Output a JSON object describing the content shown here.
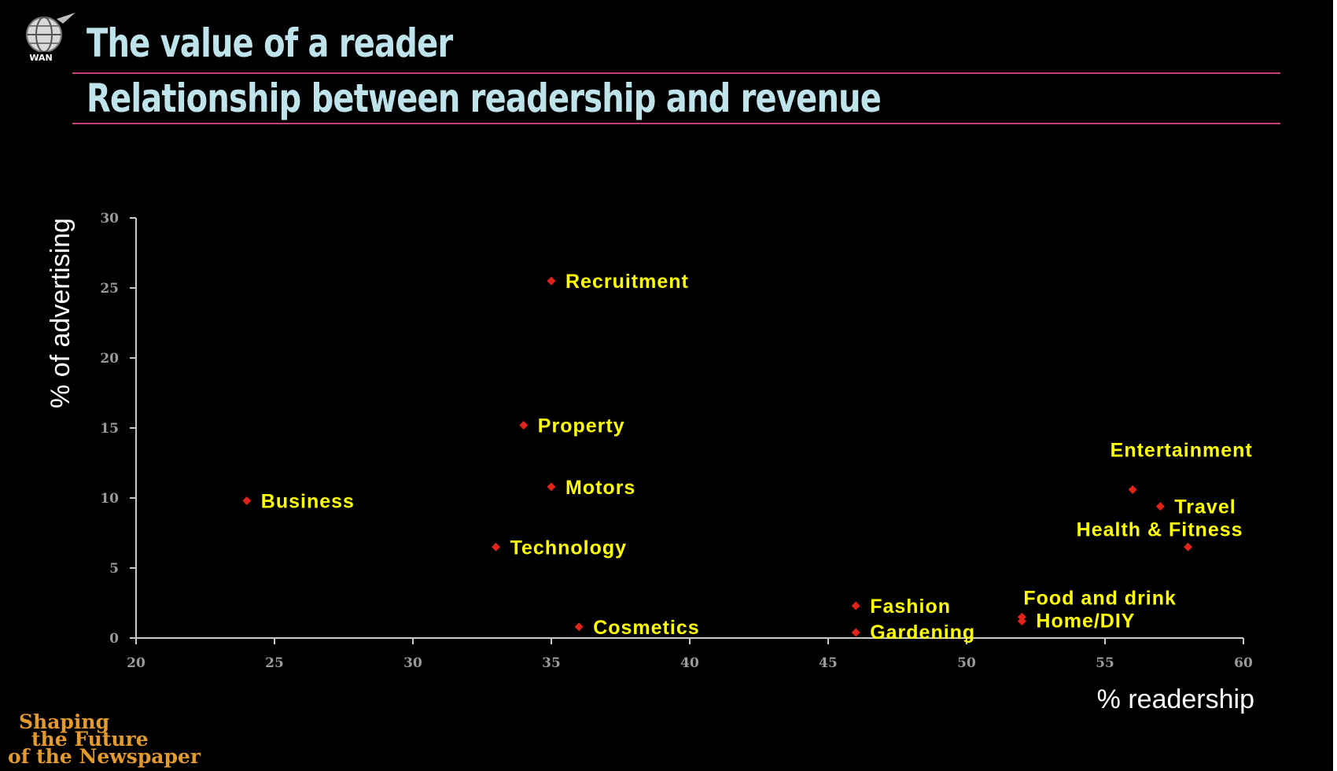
{
  "header": {
    "title": "The value of a reader",
    "subtitle": "Relationship between readership and revenue",
    "logo_text": "WAN"
  },
  "footer": {
    "line1": "Shaping",
    "line2": "the Future",
    "line3": "of the Newspaper"
  },
  "colors": {
    "background": "#000000",
    "title": "#bfe3ea",
    "rule": "#c0407a",
    "point": "#e0241b",
    "point_label": "#ffff00",
    "footer": "#e39a2d"
  },
  "chart_data": {
    "type": "scatter",
    "title": "",
    "xlabel": "% readership",
    "ylabel": "% of advertising",
    "xlim": [
      20,
      60
    ],
    "ylim": [
      0,
      30
    ],
    "xticks": [
      20,
      25,
      30,
      35,
      40,
      45,
      50,
      55,
      60
    ],
    "yticks": [
      0,
      5,
      10,
      15,
      20,
      25,
      30
    ],
    "grid": false,
    "legend": "none",
    "points": [
      {
        "label": "Recruitment",
        "x": 35,
        "y": 25.5
      },
      {
        "label": "Property",
        "x": 34,
        "y": 15.2
      },
      {
        "label": "Motors",
        "x": 35,
        "y": 10.8
      },
      {
        "label": "Business",
        "x": 24,
        "y": 9.8
      },
      {
        "label": "Technology",
        "x": 33,
        "y": 6.5
      },
      {
        "label": "Cosmetics",
        "x": 36,
        "y": 0.8
      },
      {
        "label": "Fashion",
        "x": 46,
        "y": 2.3
      },
      {
        "label": "Gardening",
        "x": 46,
        "y": 0.4
      },
      {
        "label": "Food and drink",
        "x": 52,
        "y": 1.5
      },
      {
        "label": "Home/DIY",
        "x": 52,
        "y": 1.2
      },
      {
        "label": "Entertainment",
        "x": 56,
        "y": 10.6
      },
      {
        "label": "Travel",
        "x": 57,
        "y": 9.4
      },
      {
        "label": "Health & Fitness",
        "x": 58,
        "y": 6.5
      }
    ]
  }
}
